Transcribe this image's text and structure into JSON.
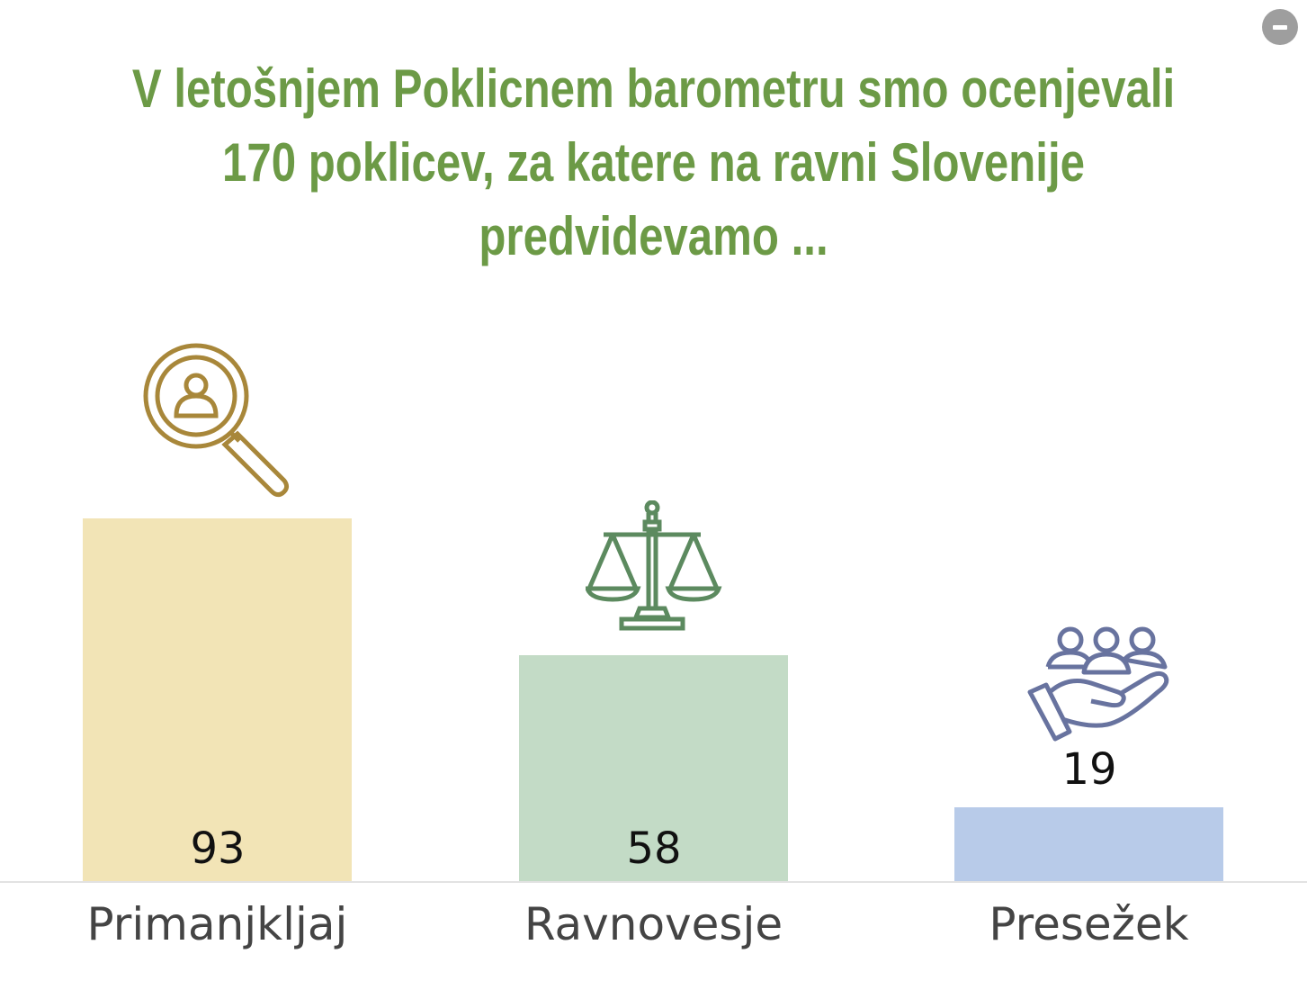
{
  "title_lines": [
    "V letošnjem Poklicnem barometru smo ocenjevali",
    "170 poklicev, za katere na ravni Slovenije",
    "predvidevamo ..."
  ],
  "colors": {
    "title": "#6c9a46",
    "bars": [
      "#f2e4b6",
      "#c3dbc6",
      "#b8cbe9"
    ],
    "icons": [
      "#a8873a",
      "#5c8a5f",
      "#68739f"
    ]
  },
  "chart_data": {
    "type": "bar",
    "title": "V letošnjem Poklicnem barometru smo ocenjevali 170 poklicev, za katere na ravni Slovenije predvidevamo ...",
    "categories": [
      "Primanjkljaj",
      "Ravnovesje",
      "Presežek"
    ],
    "values": [
      93,
      58,
      19
    ],
    "value_labels": [
      "93",
      "58",
      "19"
    ],
    "icons": [
      "magnifier-person-icon",
      "scales-icon",
      "hand-people-icon"
    ],
    "xlabel": "",
    "ylabel": "",
    "ylim": [
      0,
      100
    ],
    "grid": false
  }
}
